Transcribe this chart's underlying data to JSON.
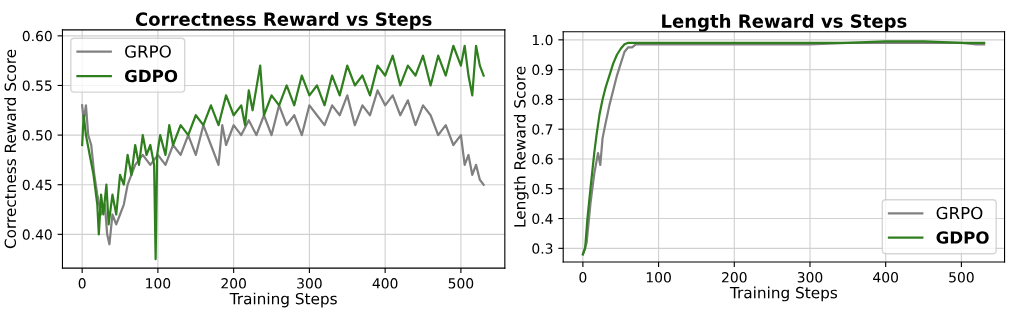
{
  "chart_data": [
    {
      "type": "line",
      "title": "Correctness Reward vs Steps",
      "xlabel": "Training Steps",
      "ylabel": "Correctness Reward Score",
      "xlim": [
        -26,
        558
      ],
      "ylim": [
        0.366,
        0.606
      ],
      "xticks": [
        0,
        100,
        200,
        300,
        400,
        500
      ],
      "yticks": [
        {
          "value": 0.4,
          "label": "0.40"
        },
        {
          "value": 0.45,
          "label": "0.45"
        },
        {
          "value": 0.5,
          "label": "0.50"
        },
        {
          "value": 0.55,
          "label": "0.55"
        },
        {
          "value": 0.6,
          "label": "0.60"
        }
      ],
      "grid": true,
      "legend": "top left",
      "series": [
        {
          "name": "GRPO",
          "color": "#808080",
          "x": [
            0,
            2,
            5,
            8,
            12,
            16,
            20,
            25,
            30,
            33,
            36,
            40,
            45,
            50,
            55,
            60,
            65,
            70,
            80,
            90,
            100,
            110,
            120,
            130,
            140,
            150,
            160,
            170,
            180,
            185,
            190,
            200,
            210,
            220,
            230,
            240,
            250,
            260,
            270,
            280,
            290,
            300,
            310,
            320,
            330,
            340,
            350,
            360,
            370,
            380,
            390,
            400,
            410,
            420,
            430,
            440,
            450,
            460,
            470,
            480,
            490,
            500,
            505,
            510,
            515,
            520,
            525,
            530
          ],
          "values": [
            0.53,
            0.515,
            0.53,
            0.5,
            0.49,
            0.46,
            0.44,
            0.42,
            0.43,
            0.4,
            0.39,
            0.42,
            0.41,
            0.42,
            0.43,
            0.45,
            0.46,
            0.47,
            0.48,
            0.47,
            0.48,
            0.47,
            0.49,
            0.48,
            0.5,
            0.48,
            0.51,
            0.49,
            0.47,
            0.51,
            0.49,
            0.51,
            0.5,
            0.515,
            0.5,
            0.52,
            0.5,
            0.53,
            0.51,
            0.52,
            0.5,
            0.53,
            0.52,
            0.51,
            0.53,
            0.52,
            0.54,
            0.51,
            0.53,
            0.52,
            0.545,
            0.53,
            0.54,
            0.52,
            0.535,
            0.51,
            0.53,
            0.52,
            0.5,
            0.51,
            0.49,
            0.5,
            0.47,
            0.48,
            0.46,
            0.47,
            0.455,
            0.45
          ]
        },
        {
          "name": "GDPO",
          "color": "#2f7f1f",
          "x": [
            0,
            2,
            5,
            10,
            15,
            20,
            22,
            25,
            28,
            32,
            35,
            40,
            45,
            50,
            55,
            60,
            65,
            70,
            75,
            80,
            85,
            90,
            95,
            97,
            99,
            103,
            110,
            115,
            120,
            130,
            140,
            150,
            160,
            170,
            180,
            190,
            200,
            210,
            215,
            220,
            225,
            235,
            240,
            250,
            260,
            270,
            280,
            290,
            300,
            310,
            320,
            330,
            340,
            350,
            360,
            370,
            380,
            390,
            400,
            410,
            420,
            430,
            440,
            450,
            460,
            470,
            480,
            490,
            500,
            505,
            510,
            515,
            520,
            525,
            530
          ],
          "values": [
            0.49,
            0.52,
            0.5,
            0.48,
            0.46,
            0.43,
            0.4,
            0.44,
            0.42,
            0.45,
            0.41,
            0.44,
            0.42,
            0.46,
            0.45,
            0.48,
            0.46,
            0.49,
            0.47,
            0.5,
            0.48,
            0.49,
            0.47,
            0.375,
            0.48,
            0.5,
            0.48,
            0.51,
            0.49,
            0.51,
            0.5,
            0.52,
            0.51,
            0.53,
            0.51,
            0.54,
            0.52,
            0.53,
            0.51,
            0.545,
            0.525,
            0.57,
            0.52,
            0.54,
            0.53,
            0.55,
            0.53,
            0.56,
            0.54,
            0.55,
            0.53,
            0.56,
            0.54,
            0.57,
            0.55,
            0.56,
            0.54,
            0.57,
            0.56,
            0.58,
            0.55,
            0.57,
            0.56,
            0.58,
            0.55,
            0.58,
            0.56,
            0.59,
            0.57,
            0.59,
            0.56,
            0.54,
            0.59,
            0.57,
            0.56
          ]
        }
      ]
    },
    {
      "type": "line",
      "title": "Length Reward vs Steps",
      "xlabel": "Training Steps",
      "ylabel": "Length Reward Score",
      "xlim": [
        -26,
        557
      ],
      "ylim": [
        0.254,
        1.027
      ],
      "xticks": [
        0,
        100,
        200,
        300,
        400,
        500
      ],
      "yticks": [
        0.3,
        0.4,
        0.5,
        0.6,
        0.7,
        0.8,
        0.9,
        {
          "value": 1.0,
          "label": "1.0"
        }
      ],
      "grid": true,
      "legend": "bottom right",
      "series": [
        {
          "name": "GRPO",
          "color": "#808080",
          "x": [
            0,
            5,
            10,
            15,
            20,
            23,
            26,
            30,
            35,
            40,
            45,
            50,
            55,
            60,
            65,
            70,
            100,
            150,
            200,
            250,
            300,
            350,
            400,
            450,
            500,
            520,
            530
          ],
          "values": [
            0.28,
            0.32,
            0.45,
            0.55,
            0.62,
            0.58,
            0.67,
            0.72,
            0.78,
            0.83,
            0.88,
            0.92,
            0.96,
            0.975,
            0.975,
            0.985,
            0.985,
            0.985,
            0.985,
            0.985,
            0.985,
            0.99,
            0.99,
            0.99,
            0.99,
            0.985,
            0.985
          ]
        },
        {
          "name": "GDPO",
          "color": "#2f7f1f",
          "x": [
            0,
            3,
            6,
            10,
            15,
            18,
            22,
            26,
            30,
            35,
            40,
            45,
            50,
            55,
            60,
            100,
            150,
            200,
            250,
            300,
            350,
            400,
            450,
            500,
            530
          ],
          "values": [
            0.28,
            0.3,
            0.4,
            0.5,
            0.62,
            0.68,
            0.75,
            0.8,
            0.84,
            0.88,
            0.92,
            0.95,
            0.97,
            0.985,
            0.99,
            0.99,
            0.99,
            0.99,
            0.99,
            0.99,
            0.99,
            0.995,
            0.995,
            0.99,
            0.99
          ]
        }
      ]
    }
  ]
}
